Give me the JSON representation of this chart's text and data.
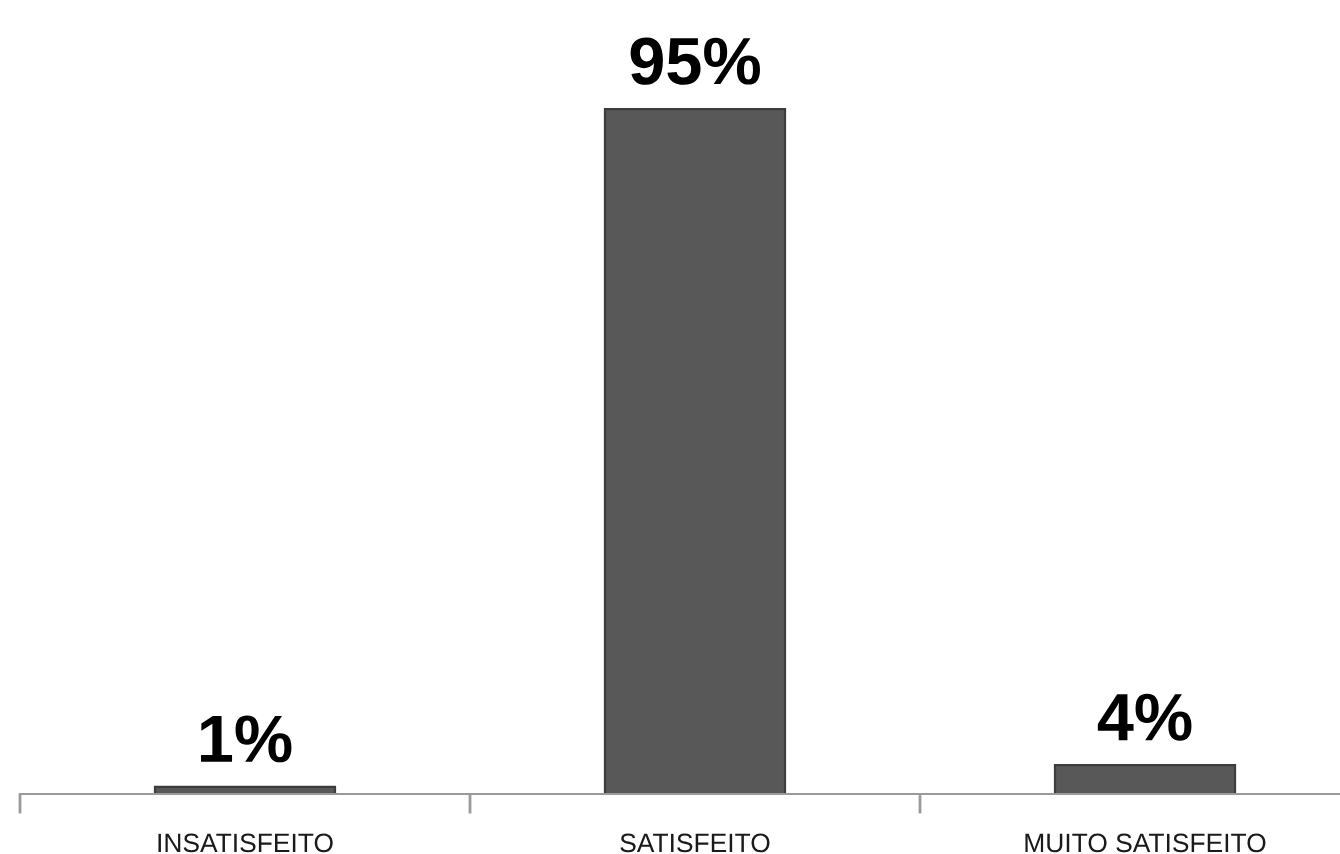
{
  "chart_data": {
    "type": "bar",
    "categories": [
      "INSATISFEITO",
      "SATISFEITO",
      "MUITO SATISFEITO"
    ],
    "values": [
      1,
      95,
      4
    ],
    "value_labels": [
      "1%",
      "95%",
      "4%"
    ],
    "color": "#585858"
  }
}
